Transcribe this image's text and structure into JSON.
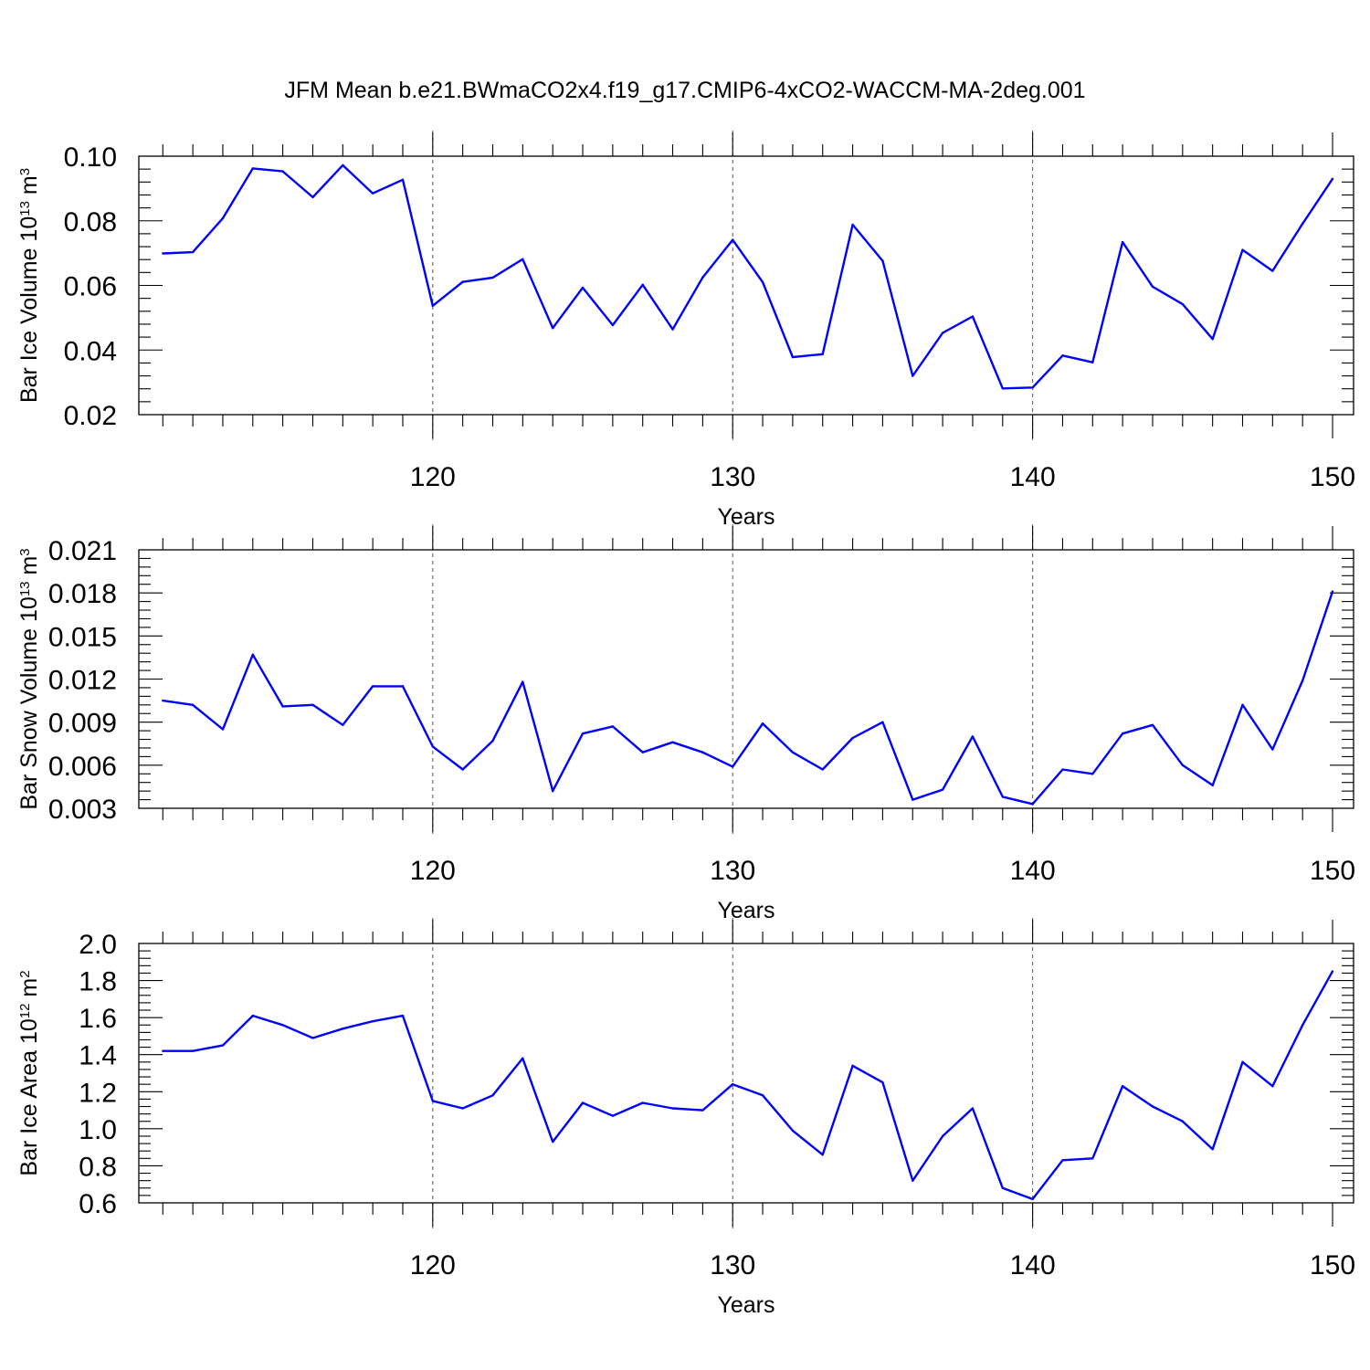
{
  "title": "JFM Mean b.e21.BWmaCO2x4.f19_g17.CMIP6-4xCO2-WACCM-MA-2deg.001",
  "colors": {
    "line": "#0000ff",
    "axis": "#000000",
    "grid": "#555555"
  },
  "chart_data": [
    {
      "type": "line",
      "ylabel": {
        "main": "Bar Ice Volume 10",
        "sup": "13",
        "unit": " m",
        "unit_sup": "3"
      },
      "xlabel": "Years",
      "xlim": [
        111,
        150
      ],
      "ylim": [
        0.02,
        0.1
      ],
      "xticks": [
        120,
        130,
        140,
        150
      ],
      "yticks": [
        "0.02",
        "0.04",
        "0.06",
        "0.08",
        "0.10"
      ],
      "grid_x": [
        120,
        130,
        140
      ],
      "series": [
        {
          "x": [
            111,
            112,
            113,
            114,
            115,
            116,
            117,
            118,
            119,
            120,
            121,
            122,
            123,
            124,
            125,
            126,
            127,
            128,
            129,
            130,
            131,
            132,
            133,
            134,
            135,
            136,
            137,
            138,
            139,
            140,
            141,
            142,
            143,
            144,
            145,
            146,
            147,
            148,
            149,
            150
          ],
          "values": [
            0.0699,
            0.0703,
            0.0808,
            0.0962,
            0.0953,
            0.0873,
            0.0972,
            0.0885,
            0.0927,
            0.0537,
            0.0611,
            0.0624,
            0.0681,
            0.0468,
            0.0593,
            0.0477,
            0.0602,
            0.0464,
            0.0625,
            0.0741,
            0.061,
            0.0378,
            0.0387,
            0.0788,
            0.0676,
            0.032,
            0.0453,
            0.0504,
            0.0281,
            0.0284,
            0.0383,
            0.0362,
            0.0734,
            0.0596,
            0.0542,
            0.0434,
            0.071,
            0.0645,
            0.0791,
            0.093
          ]
        }
      ]
    },
    {
      "type": "line",
      "ylabel": {
        "main": "Bar Snow Volume 10",
        "sup": "13",
        "unit": " m",
        "unit_sup": "3"
      },
      "xlabel": "Years",
      "xlim": [
        111,
        150
      ],
      "ylim": [
        0.003,
        0.021
      ],
      "xticks": [
        120,
        130,
        140,
        150
      ],
      "yticks": [
        "0.003",
        "0.006",
        "0.009",
        "0.012",
        "0.015",
        "0.018",
        "0.021"
      ],
      "grid_x": [
        120,
        130,
        140
      ],
      "series": [
        {
          "x": [
            111,
            112,
            113,
            114,
            115,
            116,
            117,
            118,
            119,
            120,
            121,
            122,
            123,
            124,
            125,
            126,
            127,
            128,
            129,
            130,
            131,
            132,
            133,
            134,
            135,
            136,
            137,
            138,
            139,
            140,
            141,
            142,
            143,
            144,
            145,
            146,
            147,
            148,
            149,
            150
          ],
          "values": [
            0.0105,
            0.0102,
            0.0085,
            0.0137,
            0.0101,
            0.0102,
            0.0088,
            0.0115,
            0.0115,
            0.0073,
            0.0057,
            0.0077,
            0.0118,
            0.0042,
            0.0082,
            0.0087,
            0.0069,
            0.0076,
            0.0069,
            0.0059,
            0.0089,
            0.0069,
            0.0057,
            0.0079,
            0.009,
            0.0036,
            0.0043,
            0.008,
            0.0038,
            0.0033,
            0.0057,
            0.0054,
            0.0082,
            0.0088,
            0.006,
            0.0046,
            0.0102,
            0.0071,
            0.0119,
            0.0181
          ]
        }
      ]
    },
    {
      "type": "line",
      "ylabel": {
        "main": "Bar Ice Area 10",
        "sup": "12",
        "unit": " m",
        "unit_sup": "2"
      },
      "xlabel": "Years",
      "xlim": [
        111,
        150
      ],
      "ylim": [
        0.6,
        2.0
      ],
      "xticks": [
        120,
        130,
        140,
        150
      ],
      "yticks": [
        "0.6",
        "0.8",
        "1.0",
        "1.2",
        "1.4",
        "1.6",
        "1.8",
        "2.0"
      ],
      "grid_x": [
        120,
        130,
        140
      ],
      "series": [
        {
          "x": [
            111,
            112,
            113,
            114,
            115,
            116,
            117,
            118,
            119,
            120,
            121,
            122,
            123,
            124,
            125,
            126,
            127,
            128,
            129,
            130,
            131,
            132,
            133,
            134,
            135,
            136,
            137,
            138,
            139,
            140,
            141,
            142,
            143,
            144,
            145,
            146,
            147,
            148,
            149,
            150
          ],
          "values": [
            1.42,
            1.42,
            1.45,
            1.61,
            1.56,
            1.49,
            1.54,
            1.58,
            1.61,
            1.15,
            1.11,
            1.18,
            1.38,
            0.93,
            1.14,
            1.07,
            1.14,
            1.11,
            1.1,
            1.24,
            1.18,
            0.99,
            0.86,
            1.34,
            1.25,
            0.72,
            0.96,
            1.11,
            0.68,
            0.62,
            0.83,
            0.84,
            1.23,
            1.12,
            1.04,
            0.89,
            1.36,
            1.23,
            1.56,
            1.85
          ]
        }
      ]
    }
  ]
}
